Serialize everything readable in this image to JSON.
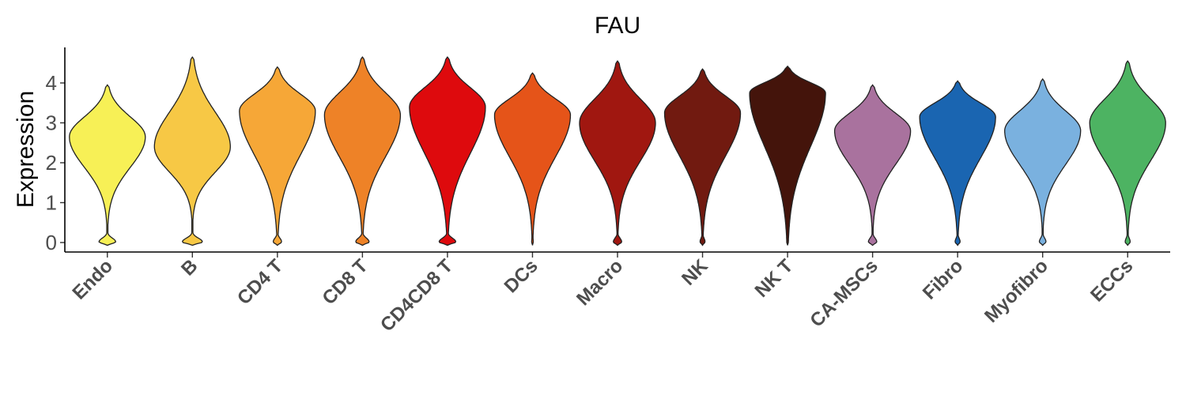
{
  "chart_data": {
    "type": "violin",
    "title": "FAU",
    "ylabel": "Expression",
    "xlabel": "",
    "ylim": [
      -0.2,
      4.8
    ],
    "yticks": [
      0,
      1,
      2,
      3,
      4
    ],
    "grid": false,
    "legend": "none",
    "categories": [
      "Endo",
      "B",
      "CD4 T",
      "CD8 T",
      "CD4CD8 T",
      "DCs",
      "Macro",
      "NK",
      "NK T",
      "CA-MSCs",
      "Fibro",
      "Myofibro",
      "ECCs"
    ],
    "series": [
      {
        "category": "Endo",
        "color": "#F7F056",
        "max": 3.95,
        "mode": 2.65,
        "zero_fraction": 0.1
      },
      {
        "category": "B",
        "color": "#F7C845",
        "max": 4.65,
        "mode": 2.4,
        "zero_fraction": 0.12
      },
      {
        "category": "CD4 T",
        "color": "#F6A737",
        "max": 4.4,
        "mode": 3.3,
        "zero_fraction": 0.05
      },
      {
        "category": "CD8 T",
        "color": "#EE8227",
        "max": 4.65,
        "mode": 3.2,
        "zero_fraction": 0.08
      },
      {
        "category": "CD4CD8 T",
        "color": "#DE0A0D",
        "max": 4.65,
        "mode": 3.4,
        "zero_fraction": 0.1
      },
      {
        "category": "DCs",
        "color": "#E55419",
        "max": 4.25,
        "mode": 3.2,
        "zero_fraction": 0.01
      },
      {
        "category": "Macro",
        "color": "#A01710",
        "max": 4.55,
        "mode": 3.0,
        "zero_fraction": 0.05
      },
      {
        "category": "NK",
        "color": "#711A10",
        "max": 4.35,
        "mode": 3.25,
        "zero_fraction": 0.03
      },
      {
        "category": "NK T",
        "color": "#44140B",
        "max": 4.42,
        "mode": 3.75,
        "zero_fraction": 0.01
      },
      {
        "category": "CA-MSCs",
        "color": "#A9729E",
        "max": 3.95,
        "mode": 2.8,
        "zero_fraction": 0.05
      },
      {
        "category": "Fibro",
        "color": "#1A65B1",
        "max": 4.05,
        "mode": 3.15,
        "zero_fraction": 0.03
      },
      {
        "category": "Myofibro",
        "color": "#7AB1DF",
        "max": 4.1,
        "mode": 2.8,
        "zero_fraction": 0.04
      },
      {
        "category": "ECCs",
        "color": "#4DB362",
        "max": 4.55,
        "mode": 3.0,
        "zero_fraction": 0.03
      }
    ]
  }
}
